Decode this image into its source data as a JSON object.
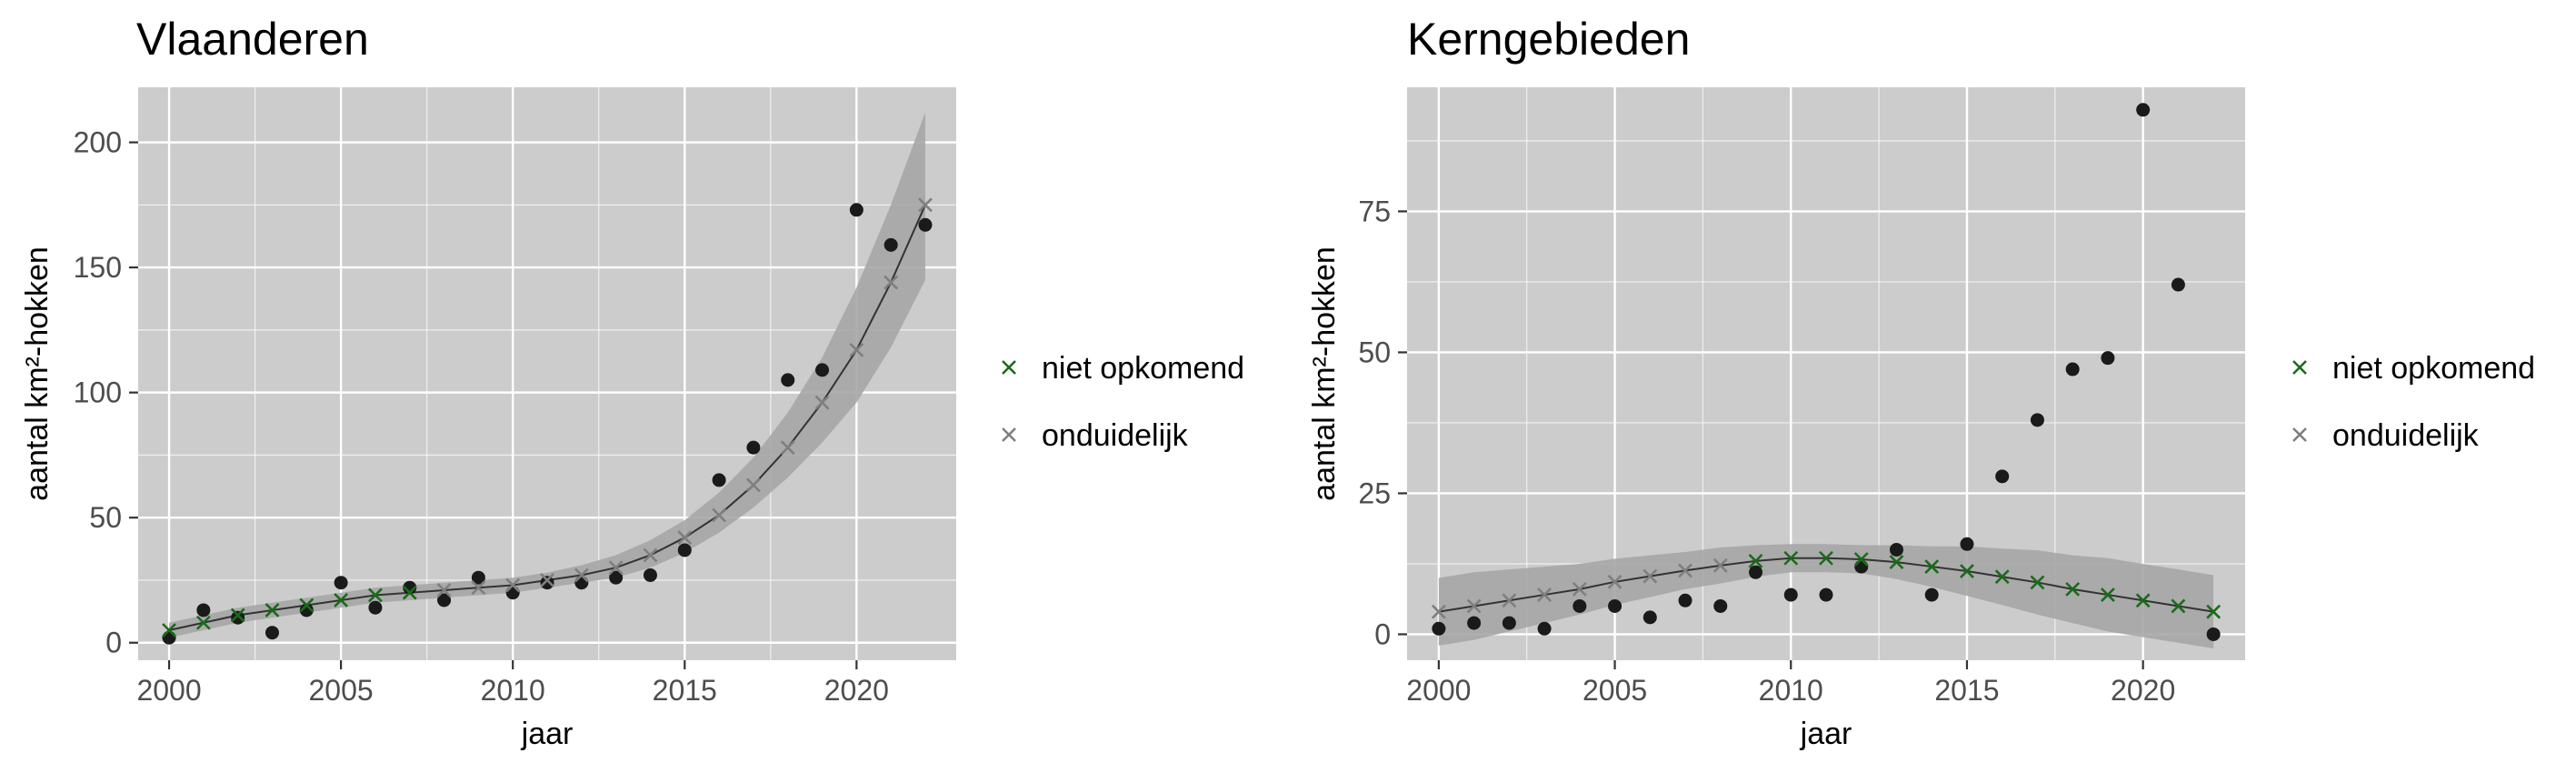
{
  "legend": {
    "entries": [
      {
        "label": "niet opkomend",
        "color": "#1a6b1a"
      },
      {
        "label": "onduidelijk",
        "color": "#7f7f7f"
      }
    ]
  },
  "colors": {
    "panel_bg": "#cccccc",
    "grid": "#ffffff",
    "ribbon": "#a6a6a6",
    "trend_line": "#333333",
    "observed_points": "#1a1a1a"
  },
  "chart_data": [
    {
      "type": "scatter",
      "title": "Vlaanderen",
      "xlabel": "jaar",
      "ylabel": "aantal km²-hokken",
      "xlim": [
        1999.1,
        2022.9
      ],
      "ylim": [
        -7,
        222
      ],
      "x_ticks": [
        2000,
        2005,
        2010,
        2015,
        2020
      ],
      "y_ticks": [
        0,
        50,
        100,
        150,
        200
      ],
      "grid": true,
      "legend_position": "right",
      "observed": {
        "x": [
          2000,
          2001,
          2002,
          2003,
          2004,
          2005,
          2006,
          2007,
          2008,
          2009,
          2010,
          2011,
          2012,
          2013,
          2014,
          2015,
          2016,
          2017,
          2018,
          2019,
          2020,
          2021,
          2022
        ],
        "y": [
          2,
          13,
          10,
          4,
          13,
          24,
          14,
          22,
          17,
          26,
          20,
          24,
          24,
          26,
          27,
          37,
          65,
          78,
          105,
          109,
          173,
          159,
          167
        ]
      },
      "fit": {
        "x": [
          2000,
          2001,
          2002,
          2003,
          2004,
          2005,
          2006,
          2007,
          2008,
          2009,
          2010,
          2011,
          2012,
          2013,
          2014,
          2015,
          2016,
          2017,
          2018,
          2019,
          2020,
          2021,
          2022
        ],
        "y": [
          5,
          8,
          11,
          13,
          15,
          17,
          19,
          20,
          21,
          22,
          23,
          25,
          27,
          30,
          35,
          42,
          51,
          63,
          78,
          96,
          117,
          144,
          175
        ],
        "lower": [
          2,
          5,
          8,
          10,
          12,
          14,
          16,
          17,
          18,
          19,
          20,
          22,
          24,
          26,
          30,
          36,
          44,
          54,
          66,
          80,
          96,
          118,
          145
        ],
        "upper": [
          8,
          11,
          14,
          16,
          18,
          20,
          22,
          23,
          24,
          25,
          26,
          28,
          31,
          35,
          41,
          49,
          60,
          74,
          92,
          114,
          142,
          175,
          212
        ],
        "status": [
          "niet opkomend",
          "niet opkomend",
          "niet opkomend",
          "niet opkomend",
          "niet opkomend",
          "niet opkomend",
          "niet opkomend",
          "niet opkomend",
          "onduidelijk",
          "onduidelijk",
          "onduidelijk",
          "onduidelijk",
          "onduidelijk",
          "onduidelijk",
          "onduidelijk",
          "onduidelijk",
          "onduidelijk",
          "onduidelijk",
          "onduidelijk",
          "onduidelijk",
          "onduidelijk",
          "onduidelijk",
          "onduidelijk"
        ]
      }
    },
    {
      "type": "scatter",
      "title": "Kerngebieden",
      "xlabel": "jaar",
      "ylabel": "aantal km²-hokken",
      "xlim": [
        1999.1,
        2022.9
      ],
      "ylim": [
        -4.6,
        97
      ],
      "x_ticks": [
        2000,
        2005,
        2010,
        2015,
        2020
      ],
      "y_ticks": [
        0,
        25,
        50,
        75
      ],
      "grid": true,
      "legend_position": "right",
      "observed": {
        "x": [
          2000,
          2001,
          2002,
          2003,
          2004,
          2005,
          2006,
          2007,
          2008,
          2009,
          2010,
          2011,
          2012,
          2013,
          2014,
          2015,
          2016,
          2017,
          2018,
          2019,
          2020,
          2021,
          2022
        ],
        "y": [
          1,
          2,
          2,
          1,
          5,
          5,
          3,
          6,
          5,
          11,
          7,
          7,
          12,
          15,
          7,
          16,
          28,
          38,
          47,
          49,
          93,
          62,
          0
        ]
      },
      "fit": {
        "x": [
          2000,
          2001,
          2002,
          2003,
          2004,
          2005,
          2006,
          2007,
          2008,
          2009,
          2010,
          2011,
          2012,
          2013,
          2014,
          2015,
          2016,
          2017,
          2018,
          2019,
          2020,
          2021,
          2022
        ],
        "y": [
          4,
          5,
          6,
          7,
          8,
          9.3,
          10.3,
          11.3,
          12.2,
          13,
          13.5,
          13.5,
          13.3,
          12.8,
          12,
          11.2,
          10.2,
          9.2,
          8,
          7,
          6,
          5,
          4
        ],
        "lower": [
          -2,
          -1,
          0.5,
          2,
          3.5,
          5.2,
          6.6,
          8,
          9,
          10.2,
          11,
          11,
          10.8,
          9.8,
          8.4,
          6.8,
          5.2,
          3.5,
          2,
          0.5,
          -0.5,
          -1.5,
          -2.5
        ],
        "upper": [
          10,
          11,
          11.5,
          12,
          12.5,
          13.4,
          14,
          14.6,
          15.4,
          15.8,
          16,
          16,
          15.8,
          15.8,
          15.6,
          15.6,
          15.2,
          14.9,
          14,
          13.5,
          12.5,
          11.5,
          10.5
        ],
        "status": [
          "onduidelijk",
          "onduidelijk",
          "onduidelijk",
          "onduidelijk",
          "onduidelijk",
          "onduidelijk",
          "onduidelijk",
          "onduidelijk",
          "onduidelijk",
          "niet opkomend",
          "niet opkomend",
          "niet opkomend",
          "niet opkomend",
          "niet opkomend",
          "niet opkomend",
          "niet opkomend",
          "niet opkomend",
          "niet opkomend",
          "niet opkomend",
          "niet opkomend",
          "niet opkomend",
          "niet opkomend",
          "niet opkomend"
        ]
      }
    }
  ]
}
